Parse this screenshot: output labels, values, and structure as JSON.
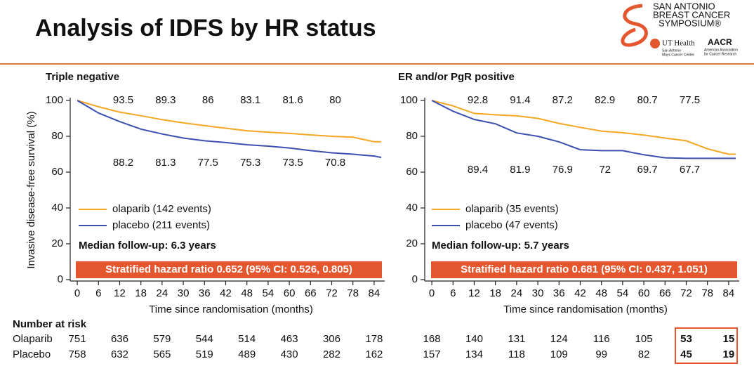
{
  "title": "Analysis of IDFS by HR status",
  "logo": {
    "lines": [
      "SAN ANTONIO",
      "BREAST CANCER",
      "SYMPOSIUM®"
    ],
    "ut": "UT Health",
    "ut_sub": [
      "San Antonio",
      "Mays Cancer Center"
    ],
    "aacr": "AACR",
    "aacr_sub": [
      "American Association",
      "for Cancer Research"
    ]
  },
  "risk_title": "Number at risk",
  "risk_rows": [
    "Olaparib",
    "Placebo"
  ],
  "chart_data": [
    {
      "type": "line",
      "title": "Triple negative",
      "ylabel": "Invasive disease-free survival (%)",
      "xlabel": "Time since randomisation (months)",
      "x": [
        0,
        6,
        12,
        18,
        24,
        30,
        36,
        42,
        48,
        54,
        60,
        66,
        72,
        78,
        84,
        86
      ],
      "series": [
        {
          "name": "olaparib (142 events)",
          "color": "#f5a623",
          "values": [
            100,
            96.5,
            93.5,
            91.5,
            89.3,
            87.5,
            86.0,
            84.5,
            83.1,
            82.3,
            81.6,
            80.8,
            80.0,
            79.5,
            77,
            77
          ],
          "landmarks": {
            "x": [
              12,
              24,
              36,
              48,
              60,
              72
            ],
            "values": [
              93.5,
              89.3,
              86.0,
              83.1,
              81.6,
              80.0
            ]
          }
        },
        {
          "name": "placebo (211 events)",
          "color": "#3a4fb0",
          "values": [
            100,
            93,
            88.2,
            84,
            81.3,
            79,
            77.5,
            76.5,
            75.3,
            74.5,
            73.5,
            72,
            70.8,
            70,
            69,
            68.2
          ],
          "landmarks": {
            "x": [
              12,
              24,
              36,
              48,
              60,
              72
            ],
            "values": [
              88.2,
              81.3,
              77.5,
              75.3,
              73.5,
              70.8
            ]
          }
        }
      ],
      "annotations": [
        "Median follow-up: 6.3 years",
        "Stratified hazard ratio 0.652 (95% CI: 0.526, 0.805)"
      ],
      "xlim": [
        -2,
        87
      ],
      "ylim": [
        0,
        100
      ],
      "xticks": [
        0,
        6,
        12,
        18,
        24,
        30,
        36,
        42,
        48,
        54,
        60,
        66,
        72,
        78,
        84
      ],
      "yticks": [
        0,
        20,
        40,
        60,
        80,
        100
      ],
      "risk": {
        "x": [
          0,
          12,
          24,
          36,
          48,
          60,
          72,
          84
        ],
        "rows": [
          [
            751,
            636,
            579,
            544,
            514,
            463,
            306,
            178
          ],
          [
            758,
            632,
            565,
            519,
            489,
            430,
            282,
            162
          ]
        ]
      }
    },
    {
      "type": "line",
      "title": "ER and/or PgR positive",
      "xlabel": "Time since randomisation (months)",
      "x": [
        0,
        6,
        12,
        18,
        24,
        30,
        36,
        42,
        48,
        54,
        60,
        66,
        72,
        78,
        84,
        86
      ],
      "series": [
        {
          "name": "olaparib (35 events)",
          "color": "#f5a623",
          "values": [
            100,
            97,
            92.8,
            92,
            91.4,
            90,
            87.2,
            85,
            82.9,
            82,
            80.7,
            79,
            77.5,
            73,
            70,
            70
          ],
          "landmarks": {
            "x": [
              12,
              24,
              36,
              48,
              60,
              72
            ],
            "values": [
              92.8,
              91.4,
              87.2,
              82.9,
              80.7,
              77.5
            ]
          }
        },
        {
          "name": "placebo (47 events)",
          "color": "#3a4fb0",
          "values": [
            100,
            94,
            89.4,
            87,
            81.9,
            80,
            76.9,
            72.5,
            72.0,
            72,
            69.7,
            68,
            67.7,
            67.7,
            67.7,
            67.7
          ],
          "landmarks": {
            "x": [
              12,
              24,
              36,
              48,
              60,
              72
            ],
            "values": [
              89.4,
              81.9,
              76.9,
              72.0,
              69.7,
              67.7
            ]
          }
        }
      ],
      "annotations": [
        "Median follow-up: 5.7 years",
        "Stratified hazard ratio 0.681 (95% CI: 0.437, 1.051)"
      ],
      "xlim": [
        -2,
        87
      ],
      "ylim": [
        0,
        100
      ],
      "xticks": [
        0,
        6,
        12,
        18,
        24,
        30,
        36,
        42,
        48,
        54,
        60,
        66,
        72,
        78,
        84
      ],
      "yticks": [
        0,
        20,
        40,
        60,
        80,
        100
      ],
      "risk": {
        "x": [
          0,
          12,
          24,
          36,
          48,
          60,
          72,
          84
        ],
        "rows": [
          [
            168,
            140,
            131,
            124,
            116,
            105,
            53,
            15
          ],
          [
            157,
            134,
            118,
            109,
            99,
            82,
            45,
            19
          ]
        ]
      }
    }
  ]
}
